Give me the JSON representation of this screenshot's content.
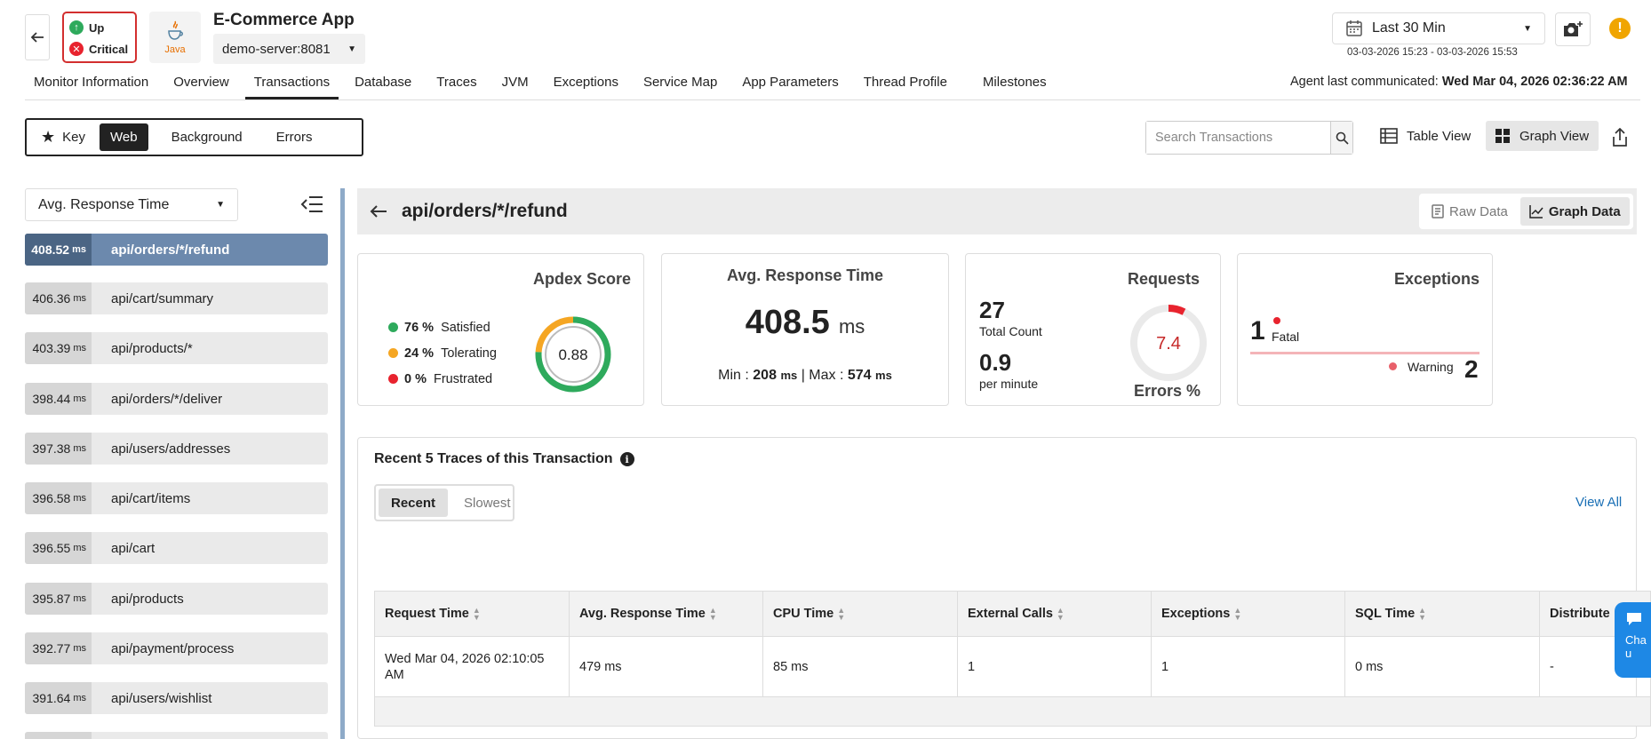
{
  "header": {
    "app_title": "E-Commerce App",
    "status_up": "Up",
    "status_critical": "Critical",
    "app_type": "Java",
    "server": "demo-server:8081",
    "time_range": "Last 30 Min",
    "time_range_detail": "03-03-2026 15:23 - 03-03-2026 15:53",
    "alert": "!"
  },
  "nav": {
    "tabs": [
      "Monitor Information",
      "Overview",
      "Transactions",
      "Database",
      "Traces",
      "JVM",
      "Exceptions",
      "Service Map",
      "App Parameters",
      "Thread Profile",
      "Milestones"
    ],
    "active_tab": "Transactions",
    "agent_label": "Agent last communicated:",
    "agent_time": "Wed Mar 04, 2026 02:36:22 AM"
  },
  "filters": {
    "key": "Key",
    "web": "Web",
    "background": "Background",
    "errors": "Errors",
    "active": "Web"
  },
  "toolbar": {
    "search_placeholder": "Search Transactions",
    "table_view": "Table View",
    "graph_view": "Graph View"
  },
  "sidebar": {
    "metric": "Avg. Response Time",
    "unit": "ms",
    "items": [
      {
        "value": "408.52",
        "name": "api/orders/*/refund"
      },
      {
        "value": "406.36",
        "name": "api/cart/summary"
      },
      {
        "value": "403.39",
        "name": "api/products/*"
      },
      {
        "value": "398.44",
        "name": "api/orders/*/deliver"
      },
      {
        "value": "397.38",
        "name": "api/users/addresses"
      },
      {
        "value": "396.58",
        "name": "api/cart/items"
      },
      {
        "value": "396.55",
        "name": "api/cart"
      },
      {
        "value": "395.87",
        "name": "api/products"
      },
      {
        "value": "392.77",
        "name": "api/payment/process"
      },
      {
        "value": "391.64",
        "name": "api/users/wishlist"
      }
    ]
  },
  "detail": {
    "title": "api/orders/*/refund",
    "raw_data": "Raw Data",
    "graph_data": "Graph Data"
  },
  "apdex": {
    "title": "Apdex Score",
    "score": "0.88",
    "satisfied_pct": "76 %",
    "satisfied_label": "Satisfied",
    "tolerating_pct": "24 %",
    "tolerating_label": "Tolerating",
    "frustrated_pct": "0 %",
    "frustrated_label": "Frustrated",
    "satisfied_fraction": 0.76,
    "tolerating_fraction": 0.24,
    "colors": {
      "satisfied": "#2eaa5c",
      "tolerating": "#f5a623",
      "frustrated": "#e8232e"
    }
  },
  "response": {
    "title": "Avg. Response Time",
    "value": "408.5",
    "unit": "ms",
    "min_label": "Min :",
    "min_value": "208",
    "max_label": "Max :",
    "max_value": "574",
    "separator": "|"
  },
  "requests": {
    "title": "Requests",
    "total": "27",
    "total_label": "Total Count",
    "rate": "0.9",
    "rate_label": "per minute",
    "error_pct": "7.4",
    "error_label": "Errors %",
    "error_fraction": 0.074
  },
  "exceptions": {
    "title": "Exceptions",
    "fatal_count": "1",
    "fatal_label": "Fatal",
    "warning_count": "2",
    "warning_label": "Warning"
  },
  "traces": {
    "title": "Recent 5 Traces of this Transaction",
    "recent": "Recent",
    "slowest": "Slowest",
    "view_all": "View All",
    "columns": [
      "Request Time",
      "Avg. Response Time",
      "CPU Time",
      "External Calls",
      "Exceptions",
      "SQL Time",
      "Distribute"
    ],
    "rows": [
      [
        "Wed Mar 04, 2026 02:10:05 AM",
        "479 ms",
        "85 ms",
        "1",
        "1",
        "0 ms",
        "-"
      ]
    ]
  },
  "chat": {
    "label": "Cha u"
  }
}
